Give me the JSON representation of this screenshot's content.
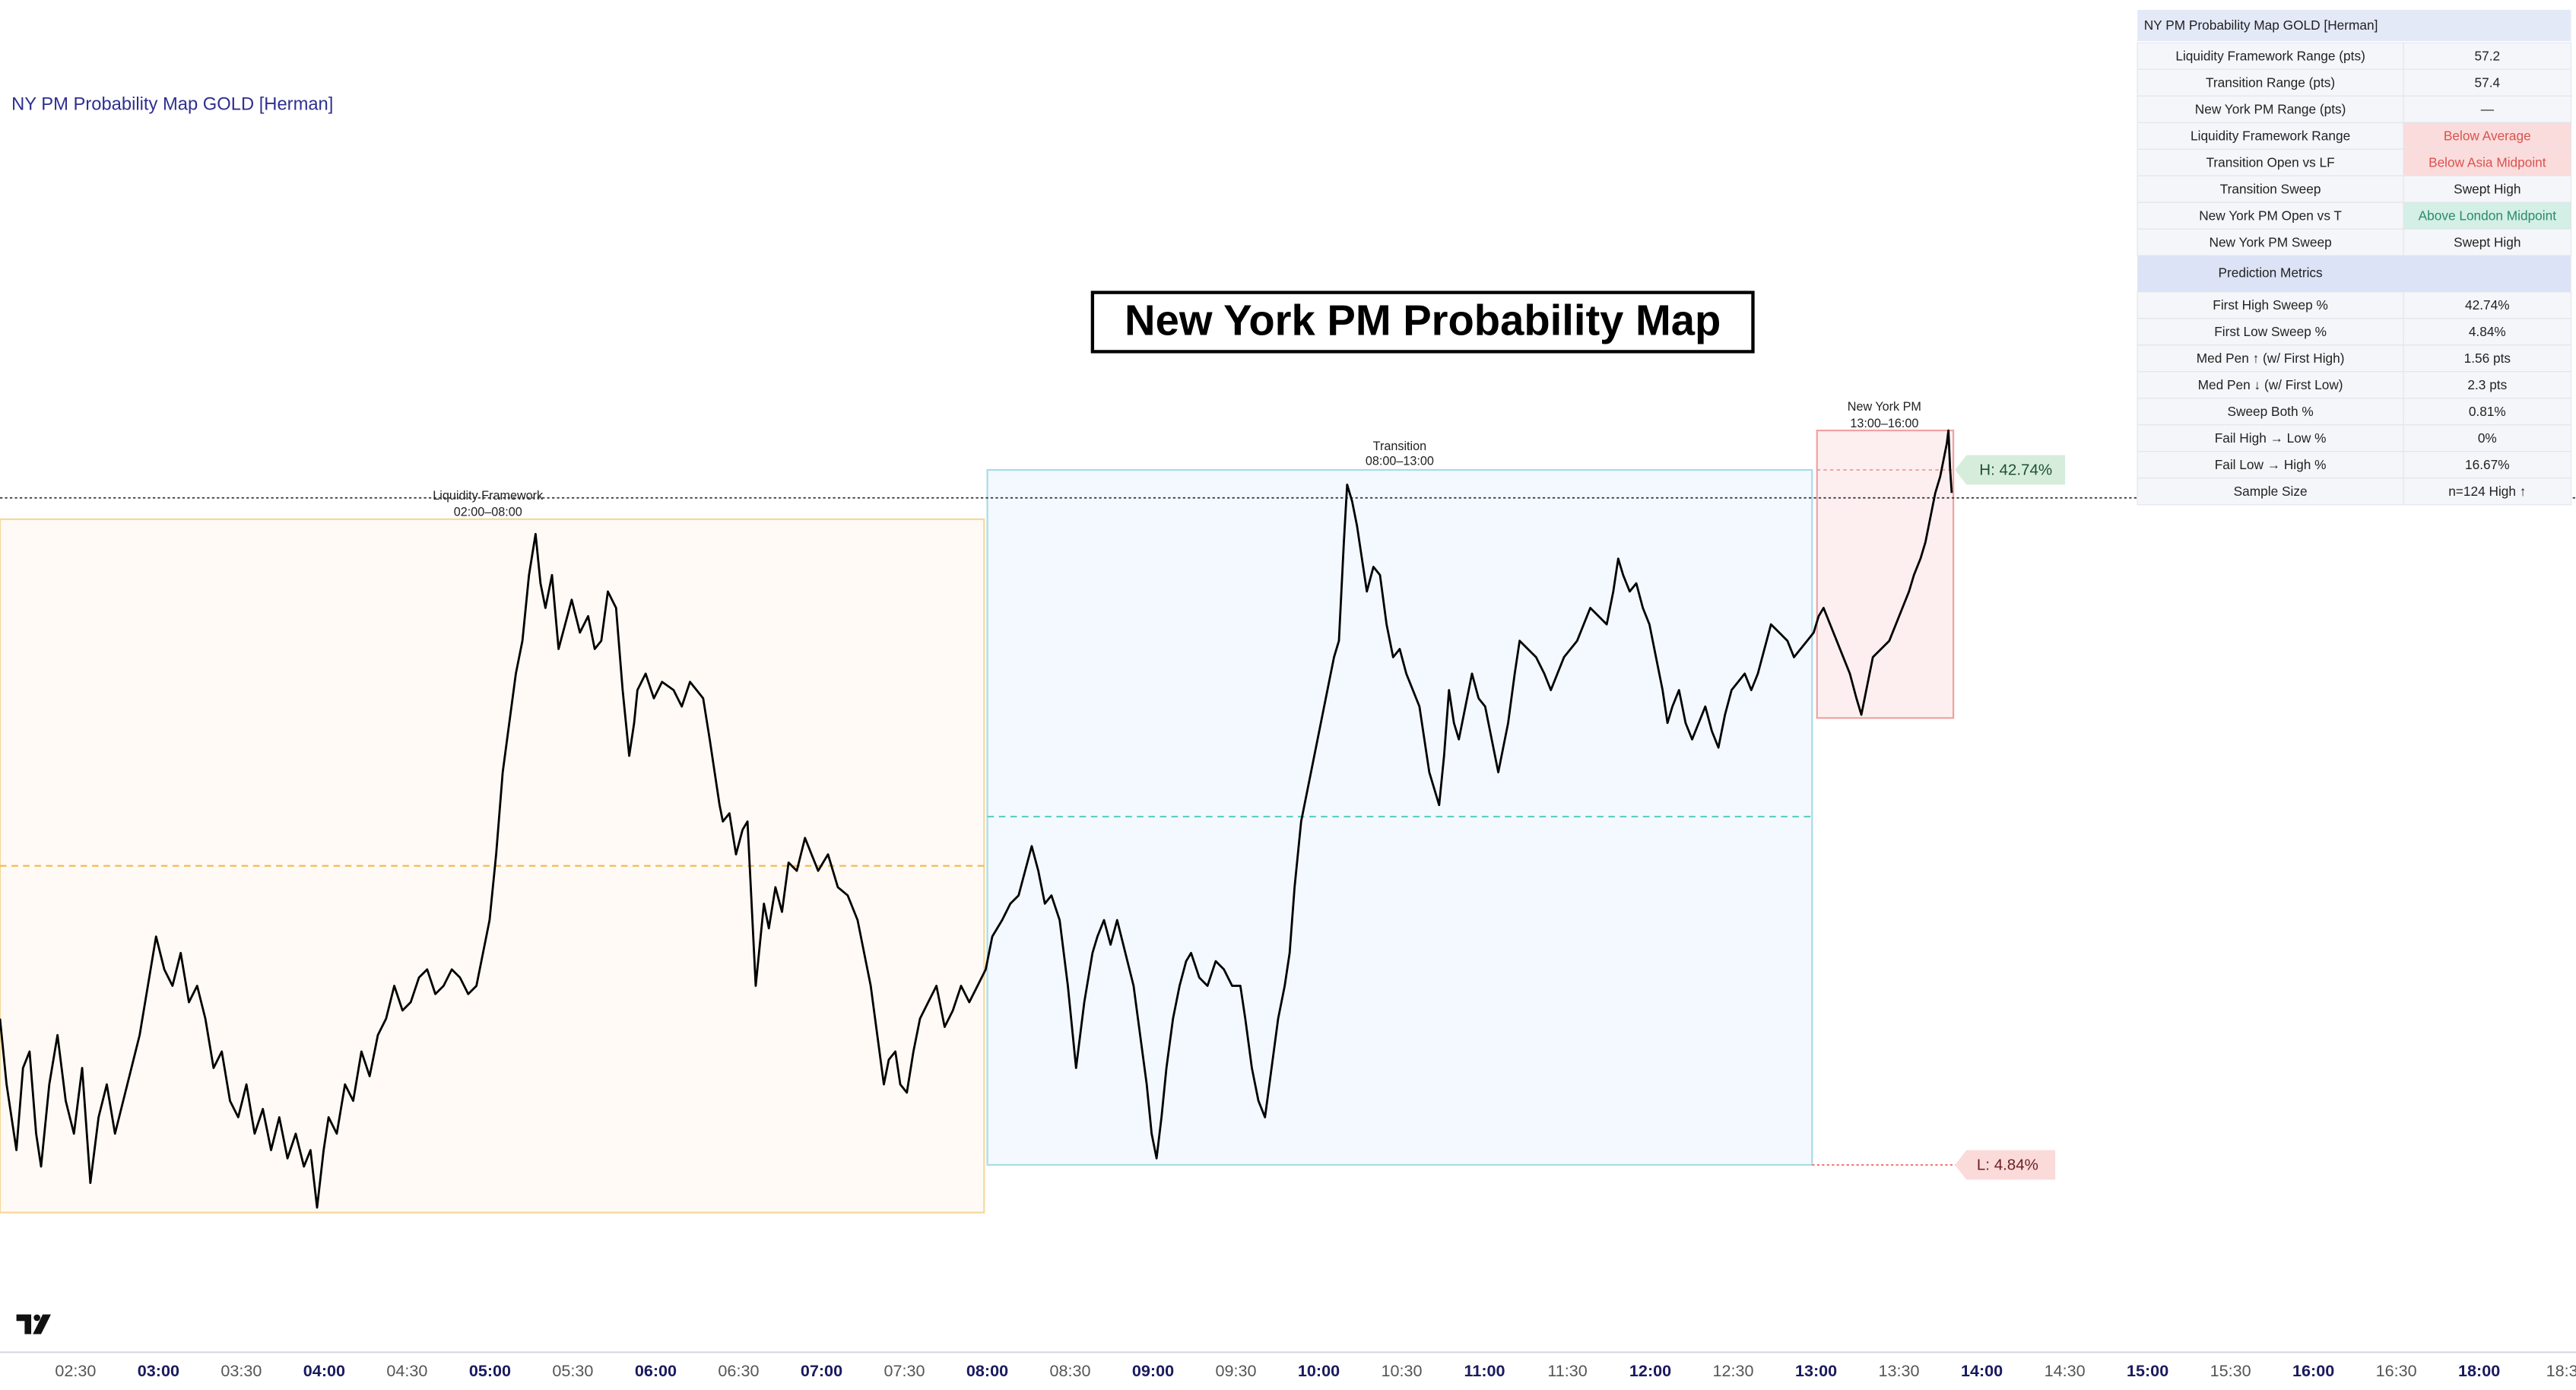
{
  "indicator_title": "NY PM Probability Map GOLD [Herman]",
  "chart_title": "New York PM Probability Map",
  "sessions": [
    {
      "name": "Liquidity Framework",
      "time": "02:00–08:00"
    },
    {
      "name": "Transition",
      "time": "08:00–13:00"
    },
    {
      "name": "New York PM",
      "time": "13:00–16:00"
    }
  ],
  "badges": {
    "high": "H: 42.74%",
    "low": "L: 4.84%"
  },
  "table": {
    "title": "NY PM Probability Map GOLD [Herman]",
    "rows": [
      [
        "Liquidity Framework Range (pts)",
        "57.2"
      ],
      [
        "Transition Range (pts)",
        "57.4"
      ],
      [
        "New York PM Range (pts)",
        "—"
      ],
      [
        "Liquidity Framework Range",
        "Below Average"
      ],
      [
        "Transition Open vs LF",
        "Below Asia Midpoint"
      ],
      [
        "Transition Sweep",
        "Swept High"
      ],
      [
        "New York PM Open vs T",
        "Above London Midpoint"
      ],
      [
        "New York PM Sweep",
        "Swept High"
      ]
    ],
    "section": "Prediction Metrics",
    "metrics": [
      [
        "First High Sweep %",
        "42.74%"
      ],
      [
        "First Low Sweep %",
        "4.84%"
      ],
      [
        "Med Pen ↑ (w/ First High)",
        "1.56 pts"
      ],
      [
        "Med Pen ↓ (w/ First Low)",
        "2.3 pts"
      ],
      [
        "Sweep Both %",
        "0.81%"
      ],
      [
        "Fail High → Low %",
        "0%"
      ],
      [
        "Fail Low → High %",
        "16.67%"
      ],
      [
        "Sample Size",
        "n=124 High ↑"
      ]
    ]
  },
  "time_axis": [
    "02:30",
    "03:00",
    "03:30",
    "04:00",
    "04:30",
    "05:00",
    "05:30",
    "06:00",
    "06:30",
    "07:00",
    "07:30",
    "08:00",
    "08:30",
    "09:00",
    "09:30",
    "10:00",
    "10:30",
    "11:00",
    "11:30",
    "12:00",
    "12:30",
    "13:00",
    "13:30",
    "14:00",
    "14:30",
    "15:00",
    "15:30",
    "16:00",
    "16:30",
    "18:00",
    "18:3"
  ]
}
